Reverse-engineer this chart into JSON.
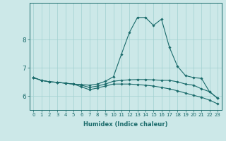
{
  "xlabel": "Humidex (Indice chaleur)",
  "bg_color": "#cce8e8",
  "line_color": "#1a6b6b",
  "grid_color": "#a0d0d0",
  "x_ticks": [
    0,
    1,
    2,
    3,
    4,
    5,
    6,
    7,
    8,
    9,
    10,
    11,
    12,
    13,
    14,
    15,
    16,
    17,
    18,
    19,
    20,
    21,
    22,
    23
  ],
  "y_ticks": [
    6,
    7,
    8
  ],
  "xlim": [
    -0.5,
    23.5
  ],
  "ylim": [
    5.5,
    9.3
  ],
  "series": [
    {
      "x": [
        0,
        1,
        2,
        3,
        4,
        5,
        6,
        7,
        8,
        9,
        10,
        11,
        12,
        13,
        14,
        15,
        16,
        17,
        18,
        19,
        20,
        21,
        22,
        23
      ],
      "y": [
        6.65,
        6.55,
        6.5,
        6.48,
        6.45,
        6.42,
        6.4,
        6.38,
        6.42,
        6.52,
        6.68,
        7.48,
        8.25,
        8.78,
        8.78,
        8.5,
        8.72,
        7.72,
        7.05,
        6.72,
        6.65,
        6.62,
        6.15,
        5.92
      ]
    },
    {
      "x": [
        0,
        1,
        2,
        3,
        4,
        5,
        6,
        7,
        8,
        9,
        10,
        11,
        12,
        13,
        14,
        15,
        16,
        17,
        18,
        19,
        20,
        21,
        22,
        23
      ],
      "y": [
        6.65,
        6.55,
        6.5,
        6.48,
        6.45,
        6.42,
        6.38,
        6.3,
        6.35,
        6.42,
        6.52,
        6.55,
        6.57,
        6.58,
        6.58,
        6.57,
        6.55,
        6.55,
        6.5,
        6.42,
        6.38,
        6.25,
        6.15,
        5.92
      ]
    },
    {
      "x": [
        0,
        1,
        2,
        3,
        4,
        5,
        6,
        7,
        8,
        9,
        10,
        11,
        12,
        13,
        14,
        15,
        16,
        17,
        18,
        19,
        20,
        21,
        22,
        23
      ],
      "y": [
        6.65,
        6.55,
        6.5,
        6.48,
        6.45,
        6.42,
        6.32,
        6.22,
        6.28,
        6.35,
        6.42,
        6.42,
        6.42,
        6.4,
        6.38,
        6.35,
        6.3,
        6.25,
        6.18,
        6.1,
        6.02,
        5.95,
        5.85,
        5.72
      ]
    }
  ]
}
